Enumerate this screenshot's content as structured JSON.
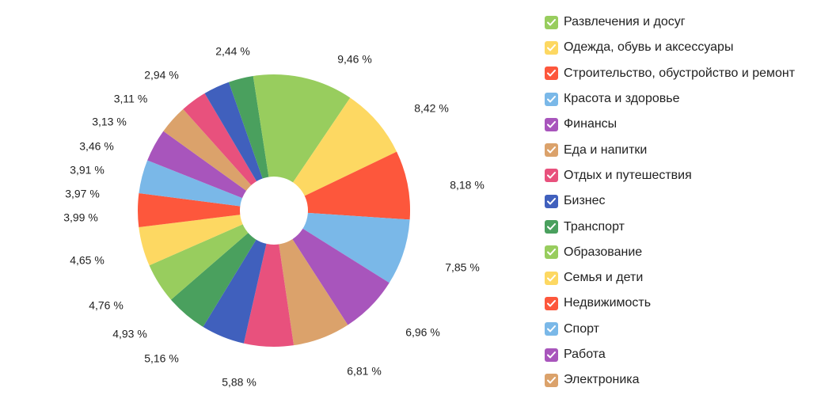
{
  "chart_data": {
    "type": "pie",
    "donut": true,
    "title": "",
    "unit_suffix": " %",
    "legend_position": "right",
    "slices": [
      {
        "label": "Развлечения и досуг",
        "value": 9.46,
        "value_label": "9,46 %",
        "color": "#98cd5e"
      },
      {
        "label": "Одежда, обувь и аксессуары",
        "value": 8.42,
        "value_label": "8,42 %",
        "color": "#fdd862"
      },
      {
        "label": "Строительство, обустройство и ремонт",
        "value": 8.18,
        "value_label": "8,18 %",
        "color": "#fd573c"
      },
      {
        "label": "Красота и здоровье",
        "value": 7.85,
        "value_label": "7,85 %",
        "color": "#7ab8e8"
      },
      {
        "label": "Финансы",
        "value": 6.96,
        "value_label": "6,96 %",
        "color": "#a855bc"
      },
      {
        "label": "Еда и напитки",
        "value": 6.81,
        "value_label": "6,81 %",
        "color": "#dba26b"
      },
      {
        "label": "Отдых и путешествия",
        "value": 5.88,
        "value_label": "5,88 %",
        "color": "#e8517d"
      },
      {
        "label": "Бизнес",
        "value": 5.16,
        "value_label": "5,16 %",
        "color": "#4060bd"
      },
      {
        "label": "Транспорт",
        "value": 4.93,
        "value_label": "4,93 %",
        "color": "#4aa05e"
      },
      {
        "label": "Образование",
        "value": 4.76,
        "value_label": "4,76 %",
        "color": "#98cd5e"
      },
      {
        "label": "Семья и дети",
        "value": 4.65,
        "value_label": "4,65 %",
        "color": "#fdd862"
      },
      {
        "label": "Недвижимость",
        "value": 3.99,
        "value_label": "3,99 %",
        "color": "#fd573c"
      },
      {
        "label": "Спорт",
        "value": 3.97,
        "value_label": "3,97 %",
        "color": "#7ab8e8"
      },
      {
        "label": "Работа",
        "value": 3.91,
        "value_label": "3,91 %",
        "color": "#a855bc"
      },
      {
        "label": "Электроника",
        "value": 3.46,
        "value_label": "3,46 %",
        "color": "#dba26b"
      },
      {
        "label": "",
        "value": 3.13,
        "value_label": "3,13 %",
        "color": "#e8517d"
      },
      {
        "label": "",
        "value": 3.11,
        "value_label": "3,11 %",
        "color": "#4060bd"
      },
      {
        "label": "",
        "value": 2.94,
        "value_label": "2,94 %",
        "color": "#4aa05e"
      },
      {
        "label": "",
        "value": 2.44,
        "value_label": "2,44 %",
        "color": "#98cd5e"
      }
    ]
  }
}
